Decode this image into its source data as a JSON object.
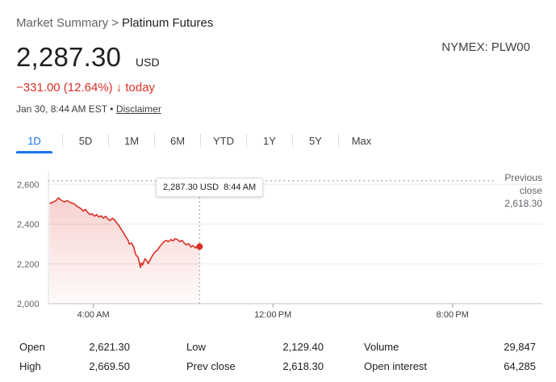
{
  "breadcrumb": {
    "root": "Market Summary",
    "separator": ">",
    "current": "Platinum Futures"
  },
  "quote": {
    "price": "2,287.30",
    "currency": "USD",
    "exchange": "NYMEX: PLW00",
    "change": "−331.00 (12.64%)",
    "change_arrow": "↓",
    "change_period": "today",
    "timestamp": "Jan 30, 8:44 AM EST",
    "timestamp_sep": "•",
    "disclaimer": "Disclaimer"
  },
  "tabs": [
    {
      "label": "1D",
      "active": true
    },
    {
      "label": "5D",
      "active": false
    },
    {
      "label": "1M",
      "active": false
    },
    {
      "label": "6M",
      "active": false
    },
    {
      "label": "YTD",
      "active": false
    },
    {
      "label": "1Y",
      "active": false
    },
    {
      "label": "5Y",
      "active": false
    },
    {
      "label": "Max",
      "active": false
    }
  ],
  "tooltip": {
    "value": "2,287.30 USD",
    "time": "8:44 AM"
  },
  "previous_close": {
    "label_line1": "Previous",
    "label_line2": "close",
    "value": "2,618.30"
  },
  "colors": {
    "line": "#d93025",
    "accent": "#1a73e8",
    "grid": "#e8eaed"
  },
  "chart_data": {
    "type": "line",
    "ylim": [
      2000,
      2650
    ],
    "yticks": [
      2000,
      2200,
      2400,
      2600
    ],
    "ytick_labels": [
      "2,000",
      "2,200",
      "2,400",
      "2,600"
    ],
    "xlim_hours": [
      2.0,
      24.0
    ],
    "xticks": [
      {
        "hour": 4,
        "label": "4:00 AM"
      },
      {
        "hour": 12,
        "label": "12:00 PM"
      },
      {
        "hour": 20,
        "label": "8:00 PM"
      }
    ],
    "previous_close": 2618.3,
    "current_hour": 8.733,
    "series": [
      {
        "values": [
          [
            2.05,
            2505
          ],
          [
            2.2,
            2510
          ],
          [
            2.35,
            2520
          ],
          [
            2.45,
            2532
          ],
          [
            2.55,
            2522
          ],
          [
            2.7,
            2512
          ],
          [
            2.85,
            2518
          ],
          [
            3.0,
            2508
          ],
          [
            3.15,
            2502
          ],
          [
            3.3,
            2488
          ],
          [
            3.45,
            2478
          ],
          [
            3.55,
            2466
          ],
          [
            3.65,
            2474
          ],
          [
            3.75,
            2460
          ],
          [
            3.85,
            2448
          ],
          [
            3.95,
            2452
          ],
          [
            4.05,
            2440
          ],
          [
            4.15,
            2448
          ],
          [
            4.25,
            2436
          ],
          [
            4.35,
            2442
          ],
          [
            4.45,
            2430
          ],
          [
            4.55,
            2440
          ],
          [
            4.65,
            2426
          ],
          [
            4.75,
            2418
          ],
          [
            4.85,
            2430
          ],
          [
            4.95,
            2420
          ],
          [
            5.05,
            2406
          ],
          [
            5.15,
            2392
          ],
          [
            5.25,
            2372
          ],
          [
            5.35,
            2356
          ],
          [
            5.45,
            2336
          ],
          [
            5.55,
            2318
          ],
          [
            5.6,
            2300
          ],
          [
            5.7,
            2305
          ],
          [
            5.8,
            2285
          ],
          [
            5.85,
            2262
          ],
          [
            5.9,
            2245
          ],
          [
            6.0,
            2232
          ],
          [
            6.05,
            2205
          ],
          [
            6.1,
            2182
          ],
          [
            6.15,
            2205
          ],
          [
            6.2,
            2195
          ],
          [
            6.3,
            2226
          ],
          [
            6.4,
            2212
          ],
          [
            6.45,
            2202
          ],
          [
            6.55,
            2225
          ],
          [
            6.65,
            2245
          ],
          [
            6.75,
            2260
          ],
          [
            6.85,
            2268
          ],
          [
            6.95,
            2285
          ],
          [
            7.05,
            2300
          ],
          [
            7.15,
            2312
          ],
          [
            7.25,
            2318
          ],
          [
            7.35,
            2312
          ],
          [
            7.45,
            2322
          ],
          [
            7.55,
            2316
          ],
          [
            7.65,
            2327
          ],
          [
            7.75,
            2322
          ],
          [
            7.85,
            2312
          ],
          [
            7.95,
            2318
          ],
          [
            8.05,
            2305
          ],
          [
            8.15,
            2296
          ],
          [
            8.25,
            2302
          ],
          [
            8.35,
            2285
          ],
          [
            8.45,
            2292
          ],
          [
            8.55,
            2280
          ],
          [
            8.65,
            2292
          ],
          [
            8.733,
            2287.3
          ]
        ]
      }
    ]
  },
  "stats": [
    {
      "label": "Open",
      "value": "2,621.30"
    },
    {
      "label": "Low",
      "value": "2,129.40"
    },
    {
      "label": "Volume",
      "value": "29,847"
    },
    {
      "label": "High",
      "value": "2,669.50"
    },
    {
      "label": "Prev close",
      "value": "2,618.30"
    },
    {
      "label": "Open interest",
      "value": "64,285"
    }
  ]
}
